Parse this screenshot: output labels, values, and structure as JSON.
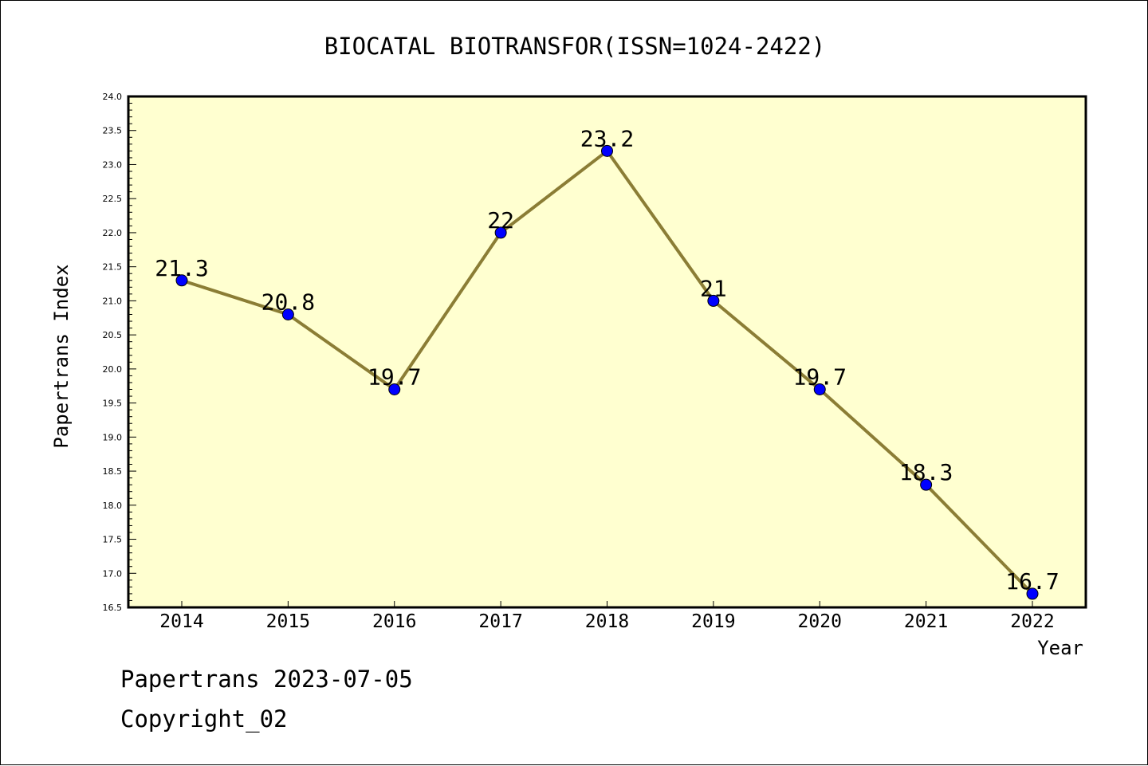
{
  "chart_data": {
    "type": "line",
    "title": "BIOCATAL BIOTRANSFOR(ISSN=1024-2422)",
    "xlabel": "Year",
    "ylabel": "Papertrans Index",
    "categories": [
      "2014",
      "2015",
      "2016",
      "2017",
      "2018",
      "2019",
      "2020",
      "2021",
      "2022"
    ],
    "values": [
      21.3,
      20.8,
      19.7,
      22,
      23.2,
      21,
      19.7,
      18.3,
      16.7
    ],
    "data_labels": [
      "21.3",
      "20.8",
      "19.7",
      "22",
      "23.2",
      "21",
      "19.7",
      "18.3",
      "16.7"
    ],
    "ylim": [
      16.5,
      24.0
    ],
    "y_major_step": 0.5,
    "y_minor_step": 0.1,
    "grid": false,
    "legend": "none",
    "colors": {
      "plot_background": "#ffffd0",
      "line": "#8b7d35",
      "marker": "#0000ff",
      "axes": "#000000"
    }
  },
  "footer": {
    "stamp": "Papertrans 2023-07-05",
    "copyright": "Copyright_02"
  }
}
